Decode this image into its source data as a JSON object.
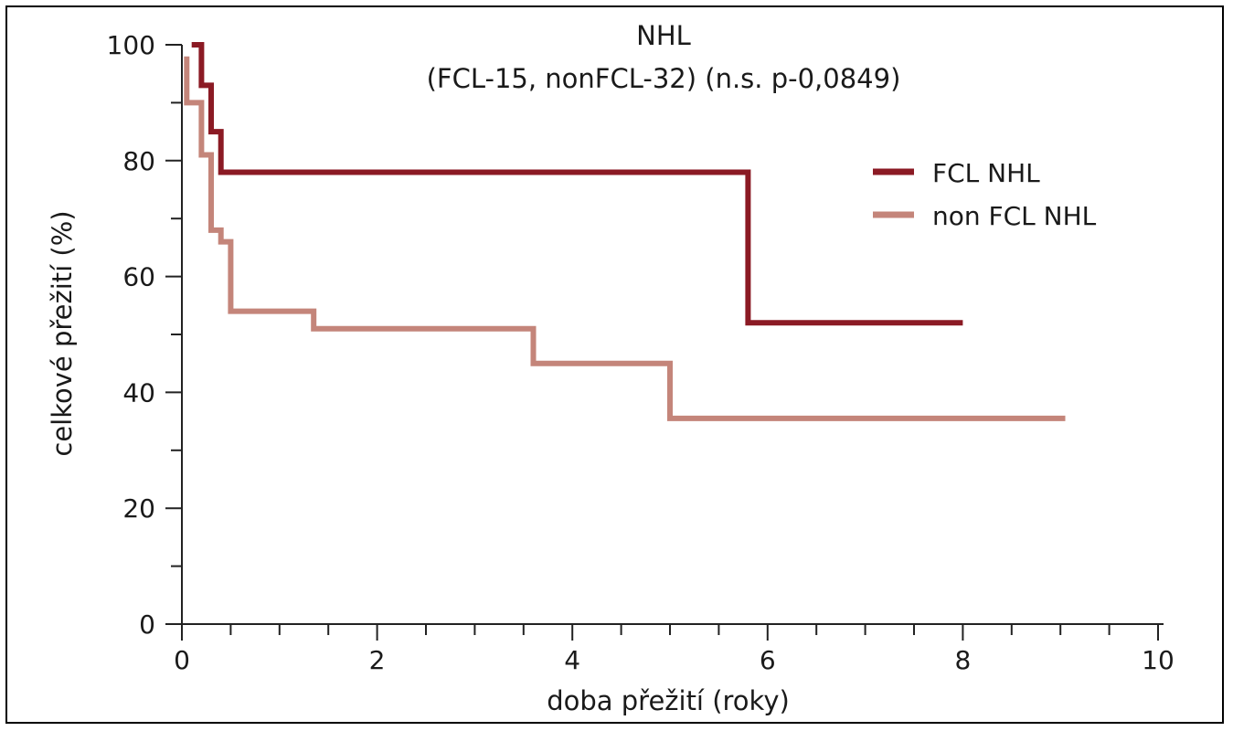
{
  "chart_data": {
    "type": "line",
    "title": "NHL",
    "subtitle": "(FCL-15, nonFCL-32) (n.s. p-0,0849)",
    "xlabel": "doba přežití (roky)",
    "ylabel": "celkové přežití (%)",
    "xlim": [
      0,
      10
    ],
    "ylim": [
      0,
      100
    ],
    "xticks": [
      0,
      2,
      4,
      6,
      8,
      10
    ],
    "yticks": [
      0,
      20,
      40,
      60,
      80,
      100
    ],
    "x_minor_step": 0.5,
    "y_minor_step": 10,
    "grid": false,
    "legend_position": "right",
    "series": [
      {
        "name": "FCL NHL",
        "color": "#8b1a24",
        "step": true,
        "points": [
          [
            0.1,
            100
          ],
          [
            0.2,
            100
          ],
          [
            0.2,
            93
          ],
          [
            0.3,
            93
          ],
          [
            0.3,
            85
          ],
          [
            0.4,
            85
          ],
          [
            0.4,
            78
          ],
          [
            5.8,
            78
          ],
          [
            5.8,
            52
          ],
          [
            8.0,
            52
          ]
        ]
      },
      {
        "name": "non FCL NHL",
        "color": "#c4857a",
        "step": true,
        "points": [
          [
            0.05,
            98
          ],
          [
            0.05,
            90
          ],
          [
            0.2,
            90
          ],
          [
            0.2,
            81
          ],
          [
            0.3,
            81
          ],
          [
            0.3,
            68
          ],
          [
            0.4,
            68
          ],
          [
            0.4,
            66
          ],
          [
            0.5,
            66
          ],
          [
            0.5,
            54
          ],
          [
            1.35,
            54
          ],
          [
            1.35,
            51
          ],
          [
            3.6,
            51
          ],
          [
            3.6,
            45
          ],
          [
            5.0,
            45
          ],
          [
            5.0,
            35.5
          ],
          [
            9.05,
            35.5
          ]
        ]
      }
    ]
  }
}
